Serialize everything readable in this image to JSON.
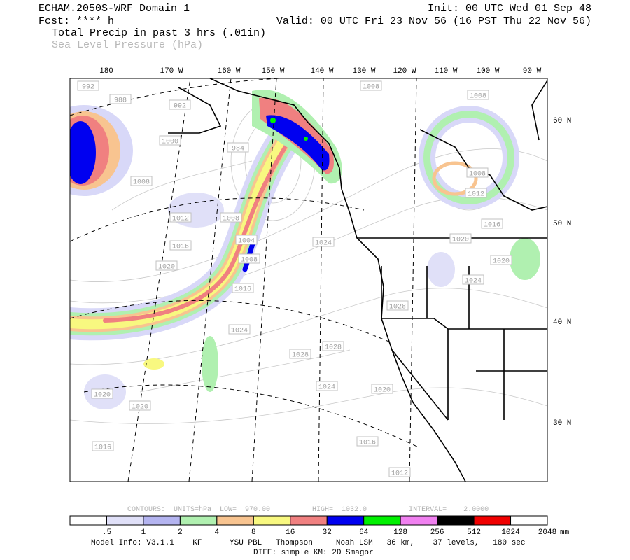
{
  "header": {
    "title": "ECHAM.2050S-WRF Domain 1",
    "init": "Init: 00 UTC Wed 01 Sep 48",
    "fcst": "Fcst: **** h",
    "valid": "Valid: 00 UTC Fri 23 Nov 56 (16 PST Thu 22 Nov 56)",
    "field1": "Total Precip in past 3 hrs (.01in)",
    "field2": "Sea Level Pressure (hPa)"
  },
  "map": {
    "lon_labels": [
      "180",
      "170 W",
      "160 W",
      "150 W",
      "140 W",
      "130 W",
      "120 W",
      "110 W",
      "100 W",
      "90 W"
    ],
    "lat_labels": [
      "60 N",
      "50 N",
      "40 N",
      "30 N"
    ],
    "pressure_labels": [
      "992",
      "988",
      "992",
      "1000",
      "984",
      "1008",
      "1012",
      "1008",
      "1016",
      "1020",
      "1004",
      "1008",
      "1016",
      "1024",
      "1028",
      "1024",
      "1028",
      "1028",
      "1024",
      "1020",
      "1020",
      "1020",
      "1016",
      "1016",
      "1012",
      "1008",
      "1008",
      "1008",
      "1012",
      "1016",
      "1020",
      "1020",
      "1024"
    ]
  },
  "footer": {
    "contours": "CONTOURS:  UNITS=hPa  LOW=  970.00          HIGH=  1032.0          INTERVAL=    2.0000",
    "colorbar": {
      "colors": [
        "#ffffff",
        "#e0e0f8",
        "#b4b4f0",
        "#b0f0b0",
        "#f8c490",
        "#f8f880",
        "#f08080",
        "#0000f0",
        "#00f000",
        "#f080f0",
        "#000000",
        "#f00000",
        "#ffffff"
      ],
      "labels": [
        ".5",
        "1",
        "2",
        "4",
        "8",
        "16",
        "32",
        "64",
        "128",
        "256",
        "512",
        "1024",
        "2048"
      ],
      "unit": "mm"
    },
    "model_info": "Model Info: V3.1.1    KF      YSU PBL   Thompson     Noah LSM   36 km,    37 levels,   180 sec",
    "diff": "DIFF: simple KM: 2D Smagor"
  }
}
